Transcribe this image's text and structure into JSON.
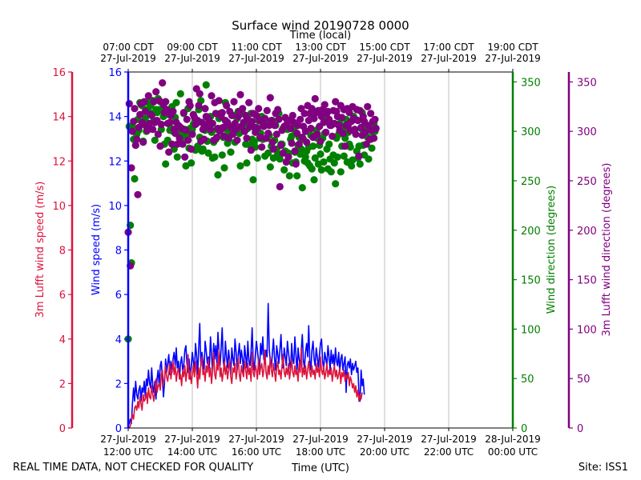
{
  "chart_data": {
    "type": "scatter",
    "title": "Surface wind 20190728 0000",
    "top_axis_label": "Time (local)",
    "xlabel": "Time (UTC)",
    "footer_left": "REAL TIME DATA, NOT CHECKED FOR QUALITY",
    "footer_right": "Site: ISS1",
    "x_range_hours_utc": [
      12,
      24
    ],
    "bottom_ticks": [
      {
        "hour": 12,
        "line1": "27-Jul-2019",
        "line2": "12:00 UTC"
      },
      {
        "hour": 14,
        "line1": "27-Jul-2019",
        "line2": "14:00 UTC"
      },
      {
        "hour": 16,
        "line1": "27-Jul-2019",
        "line2": "16:00 UTC"
      },
      {
        "hour": 18,
        "line1": "27-Jul-2019",
        "line2": "18:00 UTC"
      },
      {
        "hour": 20,
        "line1": "27-Jul-2019",
        "line2": "20:00 UTC"
      },
      {
        "hour": 22,
        "line1": "27-Jul-2019",
        "line2": "22:00 UTC"
      },
      {
        "hour": 24,
        "line1": "28-Jul-2019",
        "line2": "00:00 UTC"
      }
    ],
    "top_ticks": [
      {
        "hour": 12,
        "line1": "07:00 CDT",
        "line2": "27-Jul-2019"
      },
      {
        "hour": 14,
        "line1": "09:00 CDT",
        "line2": "27-Jul-2019"
      },
      {
        "hour": 16,
        "line1": "11:00 CDT",
        "line2": "27-Jul-2019"
      },
      {
        "hour": 18,
        "line1": "13:00 CDT",
        "line2": "27-Jul-2019"
      },
      {
        "hour": 20,
        "line1": "15:00 CDT",
        "line2": "27-Jul-2019"
      },
      {
        "hour": 22,
        "line1": "17:00 CDT",
        "line2": "27-Jul-2019"
      },
      {
        "hour": 24,
        "line1": "19:00 CDT",
        "line2": "27-Jul-2019"
      }
    ],
    "axes": {
      "lufft_speed": {
        "label": "3m Lufft wind speed (m/s)",
        "range": [
          0,
          16
        ],
        "ticks": [
          "0",
          "2",
          "4",
          "6",
          "8",
          "10",
          "12",
          "14",
          "16"
        ],
        "color": "#dc143c"
      },
      "speed": {
        "label": "Wind speed (m/s)",
        "range": [
          0,
          16
        ],
        "ticks": [
          "0",
          "2",
          "4",
          "6",
          "8",
          "10",
          "12",
          "14",
          "16"
        ],
        "color": "#0000ff"
      },
      "direction": {
        "label": "Wind direction (degrees)",
        "range": [
          0,
          360
        ],
        "ticks": [
          "0",
          "50",
          "100",
          "150",
          "200",
          "250",
          "300",
          "350"
        ],
        "color": "#008000"
      },
      "lufft_direction": {
        "label": "3m Lufft wind direction (degrees)",
        "range": [
          0,
          360
        ],
        "ticks": [
          "0",
          "50",
          "100",
          "150",
          "200",
          "250",
          "300",
          "350"
        ],
        "color": "#800080"
      }
    },
    "series": [
      {
        "name": "Wind speed (m/s)",
        "type": "line",
        "color": "#0000ff",
        "step_minutes": 2,
        "values": [
          0.1,
          0.2,
          0.4,
          0.2,
          1.1,
          1.8,
          1.2,
          2.1,
          1.5,
          1.3,
          1.7,
          1.9,
          1.2,
          1.8,
          1.6,
          2.1,
          1.4,
          2.2,
          1.9,
          2.6,
          2.0,
          1.8,
          2.7,
          1.9,
          1.6,
          2.1,
          1.3,
          2.2,
          2.6,
          1.9,
          2.8,
          3.0,
          2.2,
          1.4,
          2.0,
          3.1,
          2.5,
          2.9,
          3.3,
          2.4,
          3.0,
          2.5,
          3.1,
          3.4,
          2.8,
          3.6,
          2.7,
          3.0,
          2.2,
          2.9,
          3.2,
          2.6,
          2.8,
          3.5,
          3.7,
          2.9,
          2.5,
          3.1,
          2.2,
          2.8,
          3.4,
          3.0,
          2.6,
          3.8,
          3.3,
          2.4,
          3.6,
          4.7,
          2.8,
          3.4,
          3.0,
          2.6,
          3.9,
          3.5,
          2.9,
          3.2,
          2.7,
          4.1,
          3.3,
          2.5,
          3.8,
          3.1,
          3.7,
          2.9,
          4.3,
          3.5,
          2.8,
          3.6,
          4.5,
          3.0,
          2.6,
          3.9,
          3.2,
          2.7,
          3.5,
          3.0,
          2.4,
          3.6,
          3.1,
          2.8,
          4.0,
          3.4,
          2.6,
          3.3,
          3.8,
          2.9,
          3.5,
          3.1,
          2.5,
          3.7,
          3.2,
          2.7,
          3.9,
          3.0,
          2.8,
          3.4,
          4.5,
          3.0,
          2.6,
          3.3,
          3.9,
          3.5,
          3.0,
          2.7,
          3.8,
          3.3,
          4.1,
          3.1,
          2.9,
          3.5,
          3.2,
          5.6,
          3.6,
          3.0,
          2.7,
          3.4,
          4.0,
          3.1,
          2.6,
          3.7,
          3.3,
          2.9,
          3.5,
          4.2,
          3.1,
          2.7,
          3.6,
          3.2,
          2.8,
          3.9,
          3.4,
          3.0,
          2.6,
          3.8,
          3.1,
          2.9,
          4.1,
          3.3,
          2.5,
          3.6,
          3.1,
          2.8,
          3.5,
          4.2,
          3.0,
          2.7,
          3.4,
          3.8,
          3.2,
          4.6,
          3.0,
          2.6,
          3.5,
          3.9,
          3.1,
          2.8,
          3.6,
          3.2,
          2.7,
          3.3,
          3.8,
          4.0,
          3.0,
          2.6,
          3.4,
          3.1,
          2.8,
          3.7,
          3.2,
          2.6,
          3.5,
          2.9,
          3.3,
          2.7,
          3.6,
          3.0,
          2.8,
          3.4,
          2.5,
          3.1,
          3.3,
          2.6,
          2.9,
          3.2,
          1.6,
          2.8,
          3.0,
          2.7,
          3.1,
          2.4,
          2.9,
          2.6,
          2.8,
          3.0,
          2.5,
          2.7,
          1.5,
          1.2,
          2.6,
          1.9,
          2.2,
          1.5
        ]
      },
      {
        "name": "3m Lufft wind speed (m/s)",
        "type": "line",
        "color": "#dc143c",
        "step_minutes": 2,
        "values": [
          0.1,
          0.0,
          0.1,
          0.3,
          0.6,
          0.4,
          0.9,
          1.0,
          0.8,
          1.2,
          0.9,
          1.4,
          1.1,
          0.8,
          1.5,
          1.2,
          1.3,
          1.6,
          1.1,
          1.8,
          1.4,
          1.3,
          1.9,
          1.5,
          1.2,
          1.7,
          2.2,
          1.6,
          1.9,
          2.0,
          1.7,
          2.4,
          2.6,
          1.9,
          2.2,
          2.8,
          2.3,
          2.1,
          2.5,
          2.9,
          2.2,
          2.6,
          3.0,
          2.4,
          2.8,
          2.1,
          2.5,
          2.7,
          2.2,
          2.4,
          1.9,
          2.6,
          2.3,
          2.8,
          2.1,
          2.5,
          3.3,
          2.2,
          2.6,
          2.0,
          2.4,
          2.8,
          2.3,
          3.0,
          2.5,
          1.8,
          2.7,
          2.2,
          2.9,
          3.2,
          2.4,
          2.6,
          2.1,
          2.8,
          2.5,
          3.1,
          2.3,
          2.7,
          2.0,
          2.6,
          3.4,
          2.4,
          2.2,
          2.9,
          2.6,
          3.5,
          2.3,
          2.7,
          2.1,
          2.5,
          3.0,
          2.4,
          2.8,
          2.2,
          2.6,
          3.1,
          2.3,
          2.0,
          2.7,
          2.5,
          2.9,
          2.2,
          2.6,
          3.2,
          2.4,
          2.1,
          2.8,
          2.5,
          2.3,
          3.0,
          2.6,
          2.2,
          2.9,
          2.4,
          2.7,
          2.1,
          3.4,
          2.5,
          2.3,
          2.8,
          2.6,
          2.2,
          3.1,
          2.4,
          2.7,
          2.9,
          2.3,
          2.6,
          3.5,
          2.5,
          2.2,
          2.8,
          2.4,
          3.2,
          2.6,
          2.3,
          2.9,
          2.5,
          2.1,
          2.7,
          3.0,
          2.4,
          2.6,
          2.2,
          2.8,
          3.3,
          2.5,
          2.3,
          2.7,
          2.4,
          2.9,
          2.2,
          2.6,
          3.1,
          2.5,
          2.3,
          2.8,
          2.4,
          2.6,
          2.1,
          2.9,
          2.5,
          3.6,
          2.3,
          2.7,
          2.4,
          2.8,
          2.2,
          2.6,
          3.0,
          2.5,
          2.3,
          2.8,
          2.4,
          2.6,
          2.2,
          2.9,
          2.5,
          2.7,
          2.3,
          3.2,
          2.6,
          2.4,
          2.8,
          2.2,
          2.5,
          2.9,
          2.3,
          2.6,
          2.4,
          2.7,
          2.1,
          2.5,
          2.8,
          2.3,
          2.6,
          2.2,
          2.4,
          2.7,
          2.0,
          2.5,
          2.3,
          2.6,
          2.1,
          2.4,
          2.2,
          2.5,
          1.9,
          2.3,
          2.1,
          1.8,
          2.0,
          1.6,
          1.9,
          1.4,
          1.7,
          1.2,
          1.5,
          1.3,
          1.6
        ]
      },
      {
        "name": "Wind direction (degrees)",
        "type": "scatter",
        "color": "#008000",
        "step_minutes": 2,
        "values": [
          90,
          305,
          205,
          167,
          305,
          292,
          252,
          286,
          297,
          312,
          301,
          329,
          327,
          326,
          290,
          307,
          313,
          300,
          322,
          329,
          319,
          326,
          331,
          331,
          311,
          291,
          322,
          319,
          333,
          322,
          330,
          302,
          321,
          315,
          287,
          267,
          318,
          291,
          317,
          301,
          303,
          325,
          300,
          282,
          314,
          329,
          274,
          304,
          296,
          338,
          299,
          294,
          318,
          302,
          265,
          297,
          323,
          283,
          303,
          268,
          302,
          307,
          309,
          281,
          308,
          285,
          322,
          294,
          331,
          280,
          282,
          307,
          301,
          347,
          290,
          278,
          311,
          315,
          299,
          273,
          289,
          274,
          292,
          302,
          256,
          313,
          318,
          303,
          276,
          294,
          263,
          329,
          302,
          288,
          292,
          296,
          279,
          301,
          305,
          316,
          289,
          315,
          313,
          320,
          298,
          265,
          302,
          318,
          301,
          309,
          287,
          268,
          303,
          307,
          286,
          318,
          292,
          251,
          289,
          284,
          304,
          273,
          311,
          293,
          298,
          315,
          292,
          307,
          275,
          309,
          293,
          278,
          296,
          264,
          285,
          311,
          273,
          291,
          306,
          282,
          277,
          318,
          272,
          287,
          287,
          303,
          261,
          280,
          279,
          302,
          278,
          255,
          292,
          295,
          268,
          302,
          279,
          269,
          255,
          286,
          294,
          277,
          282,
          243,
          292,
          270,
          274,
          280,
          268,
          284,
          265,
          296,
          262,
          285,
          251,
          273,
          301,
          293,
          267,
          286,
          277,
          261,
          293,
          269,
          298,
          311,
          282,
          262,
          287,
          272,
          259,
          307,
          276,
          268,
          247,
          293,
          274,
          297,
          308,
          259,
          285,
          302,
          275,
          293,
          312,
          269,
          299,
          287,
          284,
          265,
          271,
          315,
          302,
          312,
          280,
          273,
          285,
          267,
          303,
          319,
          286,
          276,
          298,
          305,
          294,
          272,
          305,
          292,
          283,
          299,
          308,
          300
        ]
      },
      {
        "name": "3m Lufft wind direction (degrees)",
        "type": "scatter",
        "color": "#800080",
        "step_minutes": 2,
        "values": [
          198,
          328,
          164,
          263,
          300,
          310,
          323,
          286,
          292,
          236,
          304,
          317,
          328,
          309,
          289,
          330,
          320,
          305,
          301,
          336,
          308,
          317,
          316,
          302,
          330,
          309,
          340,
          311,
          297,
          331,
          285,
          307,
          349,
          327,
          319,
          330,
          322,
          308,
          279,
          309,
          316,
          287,
          320,
          302,
          298,
          309,
          287,
          306,
          293,
          304,
          303,
          287,
          319,
          274,
          301,
          312,
          291,
          330,
          326,
          282,
          297,
          317,
          314,
          307,
          343,
          311,
          326,
          338,
          290,
          309,
          302,
          292,
          323,
          315,
          305,
          313,
          308,
          302,
          336,
          308,
          291,
          329,
          318,
          294,
          303,
          331,
          300,
          315,
          319,
          304,
          295,
          311,
          326,
          309,
          293,
          320,
          304,
          316,
          297,
          330,
          308,
          302,
          291,
          315,
          320,
          337,
          305,
          323,
          309,
          300,
          316,
          293,
          312,
          329,
          305,
          281,
          310,
          318,
          304,
          299,
          316,
          303,
          323,
          311,
          294,
          284,
          308,
          305,
          313,
          293,
          321,
          298,
          306,
          334,
          311,
          289,
          282,
          306,
          318,
          297,
          322,
          312,
          244,
          286,
          301,
          278,
          305,
          314,
          269,
          309,
          274,
          311,
          303,
          288,
          316,
          309,
          280,
          267,
          298,
          306,
          287,
          312,
          323,
          294,
          305,
          318,
          300,
          289,
          326,
          311,
          318,
          303,
          323,
          294,
          313,
          333,
          319,
          297,
          321,
          305,
          290,
          315,
          322,
          309,
          327,
          299,
          318,
          320,
          312,
          306,
          306,
          295,
          321,
          308,
          330,
          320,
          315,
          306,
          301,
          326,
          314,
          298,
          322,
          285,
          306,
          323,
          307,
          319,
          301,
          310,
          325,
          313,
          302,
          297,
          322,
          311,
          275,
          321,
          304,
          296,
          315,
          310,
          299,
          287,
          325,
          306,
          292,
          318,
          301,
          310,
          293,
          312,
          303
        ]
      }
    ]
  }
}
